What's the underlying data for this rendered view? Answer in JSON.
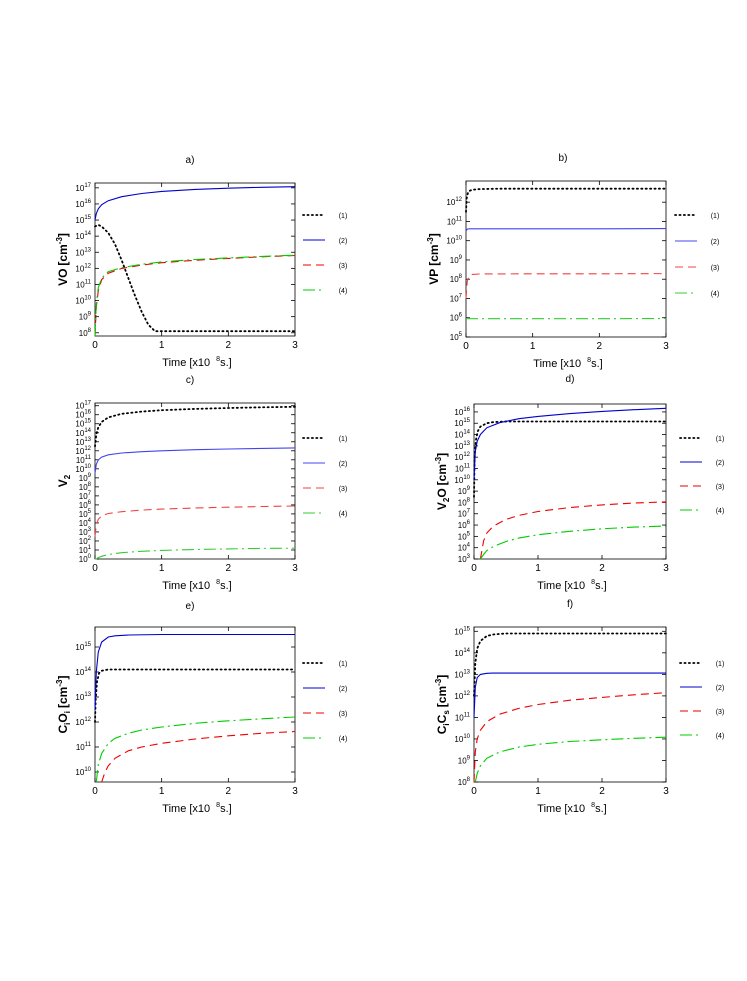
{
  "panel_time_label": "Time [x10",
  "panel_time_exp": "8",
  "panel_time_unit": "s.]",
  "chart_data": [
    {
      "id": "a",
      "panel_label": "a)",
      "type": "line",
      "ylabel_text": "VO",
      "ylabel_sub": "",
      "ylabel_tail": "",
      "ylabel_unit": "[cm",
      "ylabel_unit_exp": "-3",
      "ylabel_unit_close": "]",
      "xlim": [
        0,
        3
      ],
      "xticks": [
        "0",
        "1",
        "2",
        "3"
      ],
      "ylog": true,
      "ylim_exp": [
        7.8,
        17.3
      ],
      "yticks": [
        8,
        9,
        10,
        11,
        12,
        13,
        14,
        15,
        16,
        17
      ],
      "legend": [
        "(1)",
        "(2)",
        "(3)",
        "(4)"
      ],
      "series": [
        {
          "name": "(1)",
          "color": "#000000",
          "dash": "dot",
          "x": [
            0,
            0.05,
            0.1,
            0.2,
            0.3,
            0.4,
            0.5,
            0.6,
            0.7,
            0.8,
            0.9,
            1.0,
            2.0,
            3.0
          ],
          "y": [
            14.6,
            14.7,
            14.6,
            14.2,
            13.5,
            12.5,
            11.4,
            10.3,
            9.3,
            8.5,
            8.1,
            8.1,
            8.1,
            8.1
          ]
        },
        {
          "name": "(2)",
          "color": "#0000cc",
          "dash": "solid",
          "x": [
            0,
            0.02,
            0.05,
            0.1,
            0.2,
            0.4,
            0.7,
            1.0,
            1.5,
            2.0,
            2.5,
            3.0
          ],
          "y": [
            15.0,
            15.4,
            15.7,
            15.95,
            16.2,
            16.45,
            16.65,
            16.78,
            16.9,
            16.98,
            17.03,
            17.07
          ]
        },
        {
          "name": "(3)",
          "color": "#ee0000",
          "dash": "dash",
          "x": [
            0,
            0.02,
            0.05,
            0.1,
            0.2,
            0.4,
            0.7,
            1.0,
            1.5,
            2.0,
            2.5,
            3.0
          ],
          "y": [
            7.8,
            9.6,
            10.6,
            11.3,
            11.7,
            12.0,
            12.2,
            12.35,
            12.5,
            12.62,
            12.72,
            12.8
          ]
        },
        {
          "name": "(4)",
          "color": "#00cc00",
          "dash": "longdash",
          "x": [
            0,
            0.02,
            0.05,
            0.1,
            0.2,
            0.4,
            0.7,
            1.0,
            1.5,
            2.0,
            2.5,
            3.0
          ],
          "y": [
            7.8,
            9.8,
            10.8,
            11.4,
            11.8,
            12.05,
            12.25,
            12.4,
            12.55,
            12.65,
            12.74,
            12.82
          ]
        }
      ]
    },
    {
      "id": "b",
      "panel_label": "b)",
      "type": "line",
      "ylabel_text": "VP",
      "ylabel_sub": "",
      "ylabel_tail": "",
      "ylabel_unit": "[cm",
      "ylabel_unit_exp": "-3",
      "ylabel_unit_close": "]",
      "xlim": [
        0,
        3
      ],
      "xticks": [
        "0",
        "1",
        "2",
        "3"
      ],
      "ylog": true,
      "ylim_exp": [
        5,
        13.1
      ],
      "yticks": [
        5,
        6,
        7,
        8,
        9,
        10,
        11,
        12
      ],
      "legend": [
        "(1)",
        "(2)",
        "(3)",
        "(4)"
      ],
      "series": [
        {
          "name": "(1)",
          "color": "#000000",
          "dash": "dot",
          "x": [
            0,
            0.01,
            0.03,
            0.06,
            0.1,
            0.2,
            0.5,
            1.0,
            2.0,
            3.0
          ],
          "y": [
            11.5,
            12.2,
            12.5,
            12.6,
            12.65,
            12.68,
            12.7,
            12.7,
            12.7,
            12.7
          ]
        },
        {
          "name": "(2)",
          "color": "#4444ee",
          "dash": "solid",
          "x": [
            0,
            0.02,
            0.05,
            1.0,
            2.0,
            3.0
          ],
          "y": [
            10.5,
            10.6,
            10.62,
            10.62,
            10.62,
            10.63
          ]
        },
        {
          "name": "(3)",
          "color": "#ee4444",
          "dash": "dash",
          "x": [
            0,
            0.02,
            0.05,
            0.1,
            0.2,
            1.0,
            2.0,
            3.0
          ],
          "y": [
            7.0,
            7.9,
            8.2,
            8.25,
            8.27,
            8.28,
            8.28,
            8.29
          ]
        },
        {
          "name": "(4)",
          "color": "#33cc33",
          "dash": "longdash",
          "x": [
            0,
            0.05,
            1.0,
            2.0,
            3.0
          ],
          "y": [
            5.95,
            5.95,
            5.95,
            5.95,
            5.96
          ]
        }
      ]
    },
    {
      "id": "c",
      "panel_label": "c)",
      "type": "line",
      "ylabel_text": "V",
      "ylabel_sub": "2",
      "ylabel_tail": "",
      "ylabel_unit": "",
      "ylabel_unit_exp": "",
      "ylabel_unit_close": "",
      "xlim": [
        0,
        3
      ],
      "xticks": [
        "0",
        "1",
        "2",
        "3"
      ],
      "ylog": true,
      "ylim_exp": [
        0,
        17.3
      ],
      "yticks": [
        0,
        1,
        2,
        3,
        4,
        5,
        6,
        7,
        8,
        9,
        10,
        11,
        12,
        13,
        14,
        15,
        16,
        17
      ],
      "legend": [
        "(1)",
        "(2)",
        "(3)",
        "(4)"
      ],
      "series": [
        {
          "name": "(1)",
          "color": "#000000",
          "dash": "dot",
          "x": [
            0,
            0.02,
            0.05,
            0.1,
            0.2,
            0.4,
            0.7,
            1.0,
            1.5,
            2.0,
            2.5,
            3.0
          ],
          "y": [
            12.5,
            13.8,
            14.6,
            15.2,
            15.7,
            16.1,
            16.35,
            16.5,
            16.65,
            16.75,
            16.82,
            16.88
          ]
        },
        {
          "name": "(2)",
          "color": "#4444ee",
          "dash": "solid",
          "x": [
            0,
            0.02,
            0.05,
            0.1,
            0.2,
            0.4,
            0.7,
            1.0,
            1.5,
            2.0,
            2.5,
            3.0
          ],
          "y": [
            9.5,
            10.5,
            11.0,
            11.3,
            11.55,
            11.75,
            11.9,
            12.0,
            12.12,
            12.2,
            12.26,
            12.32
          ]
        },
        {
          "name": "(3)",
          "color": "#ee4444",
          "dash": "dash",
          "x": [
            0,
            0.02,
            0.05,
            0.1,
            0.2,
            0.4,
            0.7,
            1.0,
            1.5,
            2.0,
            2.5,
            3.0
          ],
          "y": [
            2.5,
            3.8,
            4.4,
            4.8,
            5.05,
            5.25,
            5.42,
            5.53,
            5.66,
            5.75,
            5.82,
            5.88
          ]
        },
        {
          "name": "(4)",
          "color": "#33cc33",
          "dash": "longdash",
          "x": [
            0,
            0.02,
            0.05,
            0.1,
            0.2,
            0.4,
            0.7,
            1.0,
            1.5,
            2.0,
            2.5,
            3.0
          ],
          "y": [
            0,
            0.0,
            0.15,
            0.3,
            0.5,
            0.7,
            0.85,
            0.95,
            1.05,
            1.12,
            1.17,
            1.2
          ]
        }
      ]
    },
    {
      "id": "d",
      "panel_label": "d)",
      "type": "line",
      "ylabel_text": "V",
      "ylabel_sub": "2",
      "ylabel_tail": "O",
      "ylabel_unit": "[cm",
      "ylabel_unit_exp": "-3",
      "ylabel_unit_close": "]",
      "xlim": [
        0,
        3
      ],
      "xticks": [
        "0",
        "1",
        "2",
        "3"
      ],
      "ylog": true,
      "ylim_exp": [
        3,
        16.7
      ],
      "yticks": [
        3,
        4,
        5,
        6,
        7,
        8,
        9,
        10,
        11,
        12,
        13,
        14,
        15,
        16
      ],
      "legend": [
        "(1)",
        "(2)",
        "(3)",
        "(4)"
      ],
      "series": [
        {
          "name": "(1)",
          "color": "#000000",
          "dash": "dot",
          "x": [
            0,
            0.01,
            0.03,
            0.06,
            0.1,
            0.2,
            0.3,
            0.5,
            1.0,
            2.0,
            3.0
          ],
          "y": [
            8.5,
            12.0,
            13.5,
            14.3,
            14.7,
            15.0,
            15.1,
            15.15,
            15.15,
            15.15,
            15.15
          ]
        },
        {
          "name": "(2)",
          "color": "#0000cc",
          "dash": "solid",
          "x": [
            0,
            0.02,
            0.05,
            0.1,
            0.2,
            0.4,
            0.7,
            1.0,
            1.5,
            2.0,
            2.5,
            3.0
          ],
          "y": [
            10.0,
            12.5,
            13.4,
            14.0,
            14.6,
            15.05,
            15.4,
            15.6,
            15.85,
            16.05,
            16.2,
            16.32
          ]
        },
        {
          "name": "(3)",
          "color": "#ee0000",
          "dash": "dash",
          "x": [
            0.1,
            0.15,
            0.2,
            0.3,
            0.5,
            0.7,
            1.0,
            1.5,
            2.0,
            2.5,
            3.0
          ],
          "y": [
            3.0,
            4.6,
            5.3,
            5.9,
            6.5,
            6.85,
            7.2,
            7.55,
            7.78,
            7.95,
            8.05
          ]
        },
        {
          "name": "(4)",
          "color": "#00cc00",
          "dash": "longdash",
          "x": [
            0.1,
            0.15,
            0.2,
            0.3,
            0.5,
            0.7,
            1.0,
            1.5,
            2.0,
            2.5,
            3.0
          ],
          "y": [
            3.0,
            3.4,
            3.75,
            4.1,
            4.55,
            4.85,
            5.15,
            5.45,
            5.67,
            5.82,
            5.92
          ]
        }
      ]
    },
    {
      "id": "e",
      "panel_label": "e)",
      "type": "line",
      "ylabel_text": "C",
      "ylabel_sub": "i",
      "ylabel_tail": "O",
      "ylabel_tail_sub": "i",
      "ylabel_unit": "[cm",
      "ylabel_unit_exp": "-3",
      "ylabel_unit_close": "]",
      "xlim": [
        0,
        3
      ],
      "xticks": [
        "0",
        "1",
        "2",
        "3"
      ],
      "ylog": true,
      "ylim_exp": [
        9.6,
        15.8
      ],
      "yticks": [
        10,
        11,
        12,
        13,
        14,
        15
      ],
      "legend": [
        "(1)",
        "(2)",
        "(3)",
        "(4)"
      ],
      "series": [
        {
          "name": "(1)",
          "color": "#000000",
          "dash": "dot",
          "x": [
            0,
            0.01,
            0.03,
            0.06,
            0.1,
            0.2,
            0.5,
            1.0,
            2.0,
            3.0
          ],
          "y": [
            12.0,
            12.9,
            13.6,
            13.95,
            14.05,
            14.1,
            14.1,
            14.1,
            14.1,
            14.1
          ]
        },
        {
          "name": "(2)",
          "color": "#0000cc",
          "dash": "solid",
          "x": [
            0,
            0.02,
            0.05,
            0.1,
            0.2,
            0.3,
            0.5,
            1.0,
            2.0,
            3.0
          ],
          "y": [
            12.5,
            14.0,
            14.8,
            15.2,
            15.4,
            15.45,
            15.48,
            15.5,
            15.5,
            15.5
          ]
        },
        {
          "name": "(3)",
          "color": "#ee0000",
          "dash": "dash",
          "x": [
            0.1,
            0.15,
            0.2,
            0.3,
            0.5,
            0.7,
            1.0,
            1.5,
            2.0,
            2.5,
            3.0
          ],
          "y": [
            9.6,
            10.0,
            10.25,
            10.55,
            10.85,
            11.0,
            11.15,
            11.32,
            11.45,
            11.55,
            11.62
          ]
        },
        {
          "name": "(4)",
          "color": "#00cc00",
          "dash": "longdash",
          "x": [
            0.02,
            0.05,
            0.1,
            0.2,
            0.3,
            0.5,
            0.7,
            1.0,
            1.5,
            2.0,
            2.5,
            3.0
          ],
          "y": [
            9.6,
            10.3,
            10.75,
            11.15,
            11.35,
            11.55,
            11.68,
            11.8,
            11.95,
            12.05,
            12.13,
            12.2
          ]
        }
      ]
    },
    {
      "id": "f",
      "panel_label": "f)",
      "type": "line",
      "ylabel_text": "C",
      "ylabel_sub": "i",
      "ylabel_tail": "C",
      "ylabel_tail_sub": "s",
      "ylabel_unit": "[cm",
      "ylabel_unit_exp": "-3",
      "ylabel_unit_close": "]",
      "xlim": [
        0,
        3
      ],
      "xticks": [
        "0",
        "1",
        "2",
        "3"
      ],
      "ylog": true,
      "ylim_exp": [
        8,
        15.2
      ],
      "yticks": [
        8,
        9,
        10,
        11,
        12,
        13,
        14,
        15
      ],
      "legend": [
        "(1)",
        "(2)",
        "(3)",
        "(4)"
      ],
      "series": [
        {
          "name": "(1)",
          "color": "#000000",
          "dash": "dot",
          "x": [
            0,
            0.02,
            0.05,
            0.1,
            0.2,
            0.3,
            0.4,
            0.5,
            1.0,
            2.0,
            3.0
          ],
          "y": [
            12.0,
            13.5,
            14.2,
            14.55,
            14.78,
            14.85,
            14.88,
            14.9,
            14.9,
            14.9,
            14.9
          ]
        },
        {
          "name": "(2)",
          "color": "#0000cc",
          "dash": "solid",
          "x": [
            0,
            0.02,
            0.05,
            0.1,
            0.2,
            0.3,
            0.5,
            1.0,
            2.0,
            3.0
          ],
          "y": [
            11.0,
            12.4,
            12.85,
            13.0,
            13.05,
            13.06,
            13.06,
            13.06,
            13.06,
            13.06
          ]
        },
        {
          "name": "(3)",
          "color": "#ee0000",
          "dash": "dash",
          "x": [
            0,
            0.02,
            0.05,
            0.1,
            0.2,
            0.4,
            0.7,
            1.0,
            1.5,
            2.0,
            2.5,
            3.0
          ],
          "y": [
            8.0,
            9.4,
            10.0,
            10.4,
            10.8,
            11.15,
            11.42,
            11.6,
            11.8,
            11.93,
            12.05,
            12.15
          ]
        },
        {
          "name": "(4)",
          "color": "#00cc00",
          "dash": "longdash",
          "x": [
            0.02,
            0.05,
            0.1,
            0.2,
            0.4,
            0.7,
            1.0,
            1.5,
            2.0,
            2.5,
            3.0
          ],
          "y": [
            8.0,
            8.4,
            8.75,
            9.1,
            9.4,
            9.62,
            9.75,
            9.88,
            9.96,
            10.03,
            10.08
          ]
        }
      ]
    }
  ]
}
